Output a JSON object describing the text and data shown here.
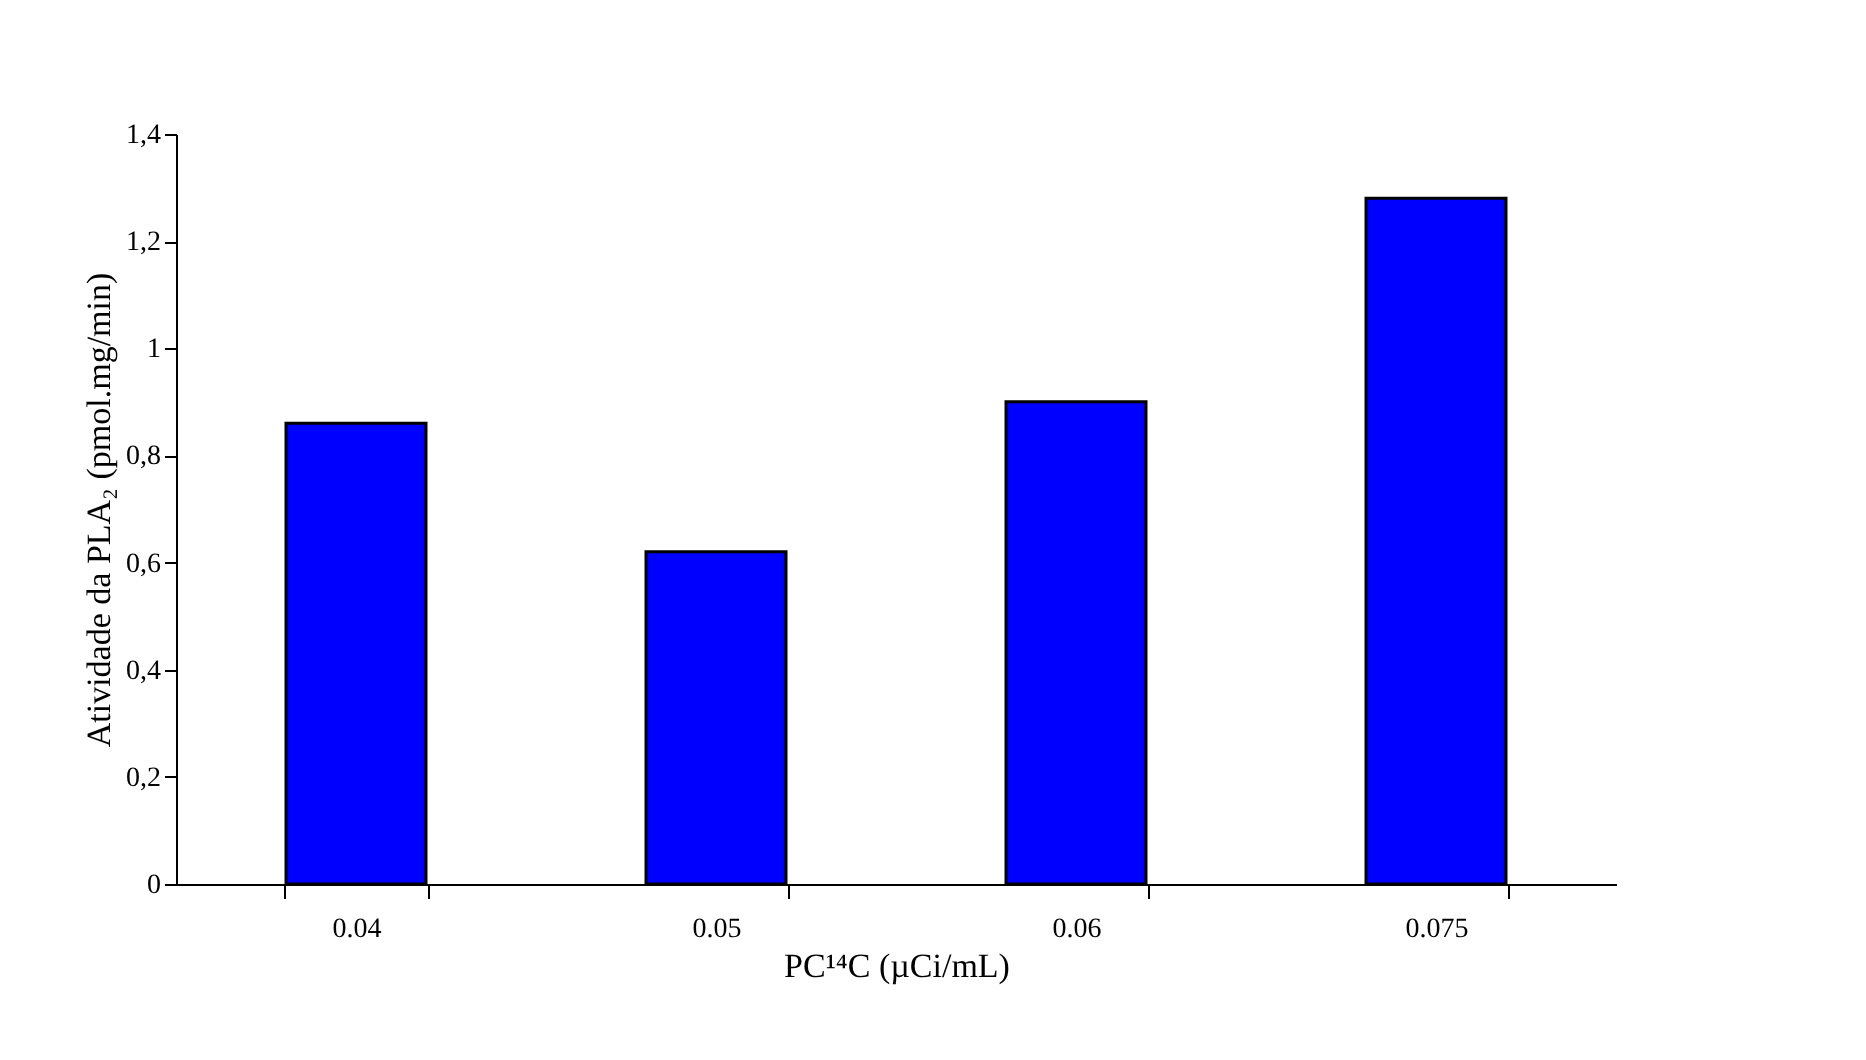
{
  "chart_data": {
    "type": "bar",
    "categories": [
      "0.04",
      "0.05",
      "0.06",
      "0.075"
    ],
    "values": [
      0.86,
      0.62,
      0.9,
      1.28
    ],
    "color": "#0000ff",
    "xlabel": "PC¹⁴C (µCi/mL)",
    "ylabel": "Atividade da PLA₂ (pmol.mg/min)",
    "ylim": [
      0,
      1.4
    ],
    "yticks": [
      0,
      {
        "value": 0.2,
        "label": "0,2"
      },
      {
        "value": 0.4,
        "label": "0,4"
      },
      {
        "value": 0.6,
        "label": "0,6"
      },
      {
        "value": 0.8,
        "label": "0,8"
      },
      1,
      {
        "value": 1.2,
        "label": "1,2"
      },
      {
        "value": 1.4,
        "label": "1,4"
      }
    ],
    "grid": false
  }
}
